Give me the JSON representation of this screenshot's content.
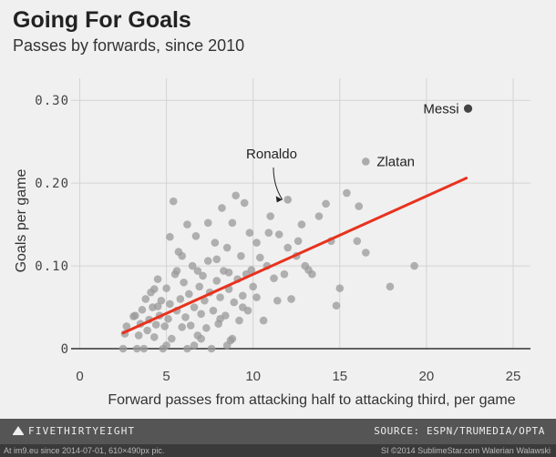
{
  "header": {
    "title": "Going For Goals",
    "subtitle": "Passes by forwards, since 2010"
  },
  "chart_data": {
    "type": "scatter",
    "title": "Going For Goals",
    "subtitle": "Passes by forwards, since 2010",
    "xlabel": "Forward passes from attacking half to attacking third, per game",
    "ylabel": "Goals per game",
    "xlim": [
      -0.5,
      26
    ],
    "ylim": [
      0,
      0.32
    ],
    "xticks": [
      0,
      5,
      10,
      15,
      20,
      25
    ],
    "xtick_labels": [
      "0",
      "5",
      "10",
      "15",
      "20",
      "25"
    ],
    "yticks": [
      0,
      0.1,
      0.2,
      0.3
    ],
    "ytick_labels": [
      "0",
      "0.10",
      "0.20",
      "0.30"
    ],
    "grid": true,
    "colors": {
      "points": "#9a9a9a",
      "highlight": "#444444",
      "trend": "#e8321e",
      "axis": "#333333",
      "grid": "#d4d4d4"
    },
    "trendline": {
      "x": [
        2.5,
        22.3
      ],
      "y": [
        0.019,
        0.206
      ]
    },
    "highlights": [
      {
        "name": "Messi",
        "x": 22.4,
        "y": 0.29
      },
      {
        "name": "Zlatan",
        "x": 16.5,
        "y": 0.226
      },
      {
        "name": "Ronaldo",
        "x": 12.0,
        "y": 0.18
      }
    ],
    "points": [
      [
        2.5,
        0.0
      ],
      [
        2.6,
        0.018
      ],
      [
        2.7,
        0.027
      ],
      [
        3.1,
        0.039
      ],
      [
        3.3,
        0.0
      ],
      [
        3.4,
        0.016
      ],
      [
        3.5,
        0.03
      ],
      [
        3.6,
        0.047
      ],
      [
        3.7,
        0.0
      ],
      [
        3.8,
        0.06
      ],
      [
        3.9,
        0.022
      ],
      [
        4.0,
        0.035
      ],
      [
        4.1,
        0.068
      ],
      [
        4.2,
        0.05
      ],
      [
        4.3,
        0.014
      ],
      [
        4.4,
        0.029
      ],
      [
        4.5,
        0.084
      ],
      [
        4.6,
        0.04
      ],
      [
        4.7,
        0.058
      ],
      [
        4.8,
        0.0
      ],
      [
        4.9,
        0.027
      ],
      [
        5.0,
        0.073
      ],
      [
        5.1,
        0.036
      ],
      [
        5.2,
        0.054
      ],
      [
        5.2,
        0.135
      ],
      [
        5.3,
        0.012
      ],
      [
        5.4,
        0.178
      ],
      [
        5.5,
        0.09
      ],
      [
        5.6,
        0.046
      ],
      [
        5.7,
        0.117
      ],
      [
        5.8,
        0.06
      ],
      [
        5.9,
        0.026
      ],
      [
        6.0,
        0.08
      ],
      [
        6.1,
        0.038
      ],
      [
        6.2,
        0.0
      ],
      [
        6.3,
        0.066
      ],
      [
        6.4,
        0.028
      ],
      [
        6.5,
        0.1
      ],
      [
        6.6,
        0.05
      ],
      [
        6.7,
        0.136
      ],
      [
        6.8,
        0.016
      ],
      [
        6.9,
        0.075
      ],
      [
        7.0,
        0.042
      ],
      [
        7.1,
        0.088
      ],
      [
        7.2,
        0.058
      ],
      [
        7.3,
        0.025
      ],
      [
        7.4,
        0.106
      ],
      [
        7.5,
        0.068
      ],
      [
        7.6,
        0.0
      ],
      [
        7.7,
        0.046
      ],
      [
        7.8,
        0.128
      ],
      [
        7.9,
        0.082
      ],
      [
        8.0,
        0.03
      ],
      [
        8.1,
        0.062
      ],
      [
        8.2,
        0.17
      ],
      [
        8.3,
        0.094
      ],
      [
        8.4,
        0.04
      ],
      [
        8.5,
        0.122
      ],
      [
        8.6,
        0.072
      ],
      [
        8.7,
        0.01
      ],
      [
        8.8,
        0.152
      ],
      [
        8.9,
        0.056
      ],
      [
        9.0,
        0.185
      ],
      [
        9.1,
        0.084
      ],
      [
        9.2,
        0.034
      ],
      [
        9.3,
        0.112
      ],
      [
        9.4,
        0.064
      ],
      [
        9.5,
        0.176
      ],
      [
        9.6,
        0.09
      ],
      [
        9.7,
        0.046
      ],
      [
        9.8,
        0.14
      ],
      [
        10.0,
        0.075
      ],
      [
        10.2,
        0.128
      ],
      [
        10.4,
        0.11
      ],
      [
        10.6,
        0.034
      ],
      [
        10.8,
        0.1
      ],
      [
        11.0,
        0.16
      ],
      [
        11.2,
        0.085
      ],
      [
        11.5,
        0.138
      ],
      [
        11.8,
        0.09
      ],
      [
        12.0,
        0.122
      ],
      [
        12.2,
        0.06
      ],
      [
        12.5,
        0.112
      ],
      [
        12.8,
        0.15
      ],
      [
        13.0,
        0.1
      ],
      [
        13.4,
        0.09
      ],
      [
        13.8,
        0.16
      ],
      [
        14.2,
        0.175
      ],
      [
        14.5,
        0.13
      ],
      [
        14.8,
        0.052
      ],
      [
        15.0,
        0.073
      ],
      [
        15.4,
        0.188
      ],
      [
        16.0,
        0.13
      ],
      [
        16.1,
        0.172
      ],
      [
        16.5,
        0.116
      ],
      [
        17.9,
        0.075
      ],
      [
        19.3,
        0.1
      ],
      [
        5.0,
        0.004
      ],
      [
        6.6,
        0.004
      ],
      [
        8.5,
        0.004
      ],
      [
        3.2,
        0.04
      ],
      [
        4.3,
        0.072
      ],
      [
        5.6,
        0.094
      ],
      [
        7.0,
        0.012
      ],
      [
        7.4,
        0.152
      ],
      [
        8.1,
        0.036
      ],
      [
        8.8,
        0.012
      ],
      [
        9.4,
        0.05
      ],
      [
        10.2,
        0.062
      ],
      [
        10.9,
        0.14
      ],
      [
        6.2,
        0.15
      ],
      [
        7.9,
        0.108
      ],
      [
        5.9,
        0.112
      ],
      [
        6.8,
        0.094
      ],
      [
        9.9,
        0.095
      ],
      [
        11.4,
        0.058
      ],
      [
        12.6,
        0.13
      ],
      [
        13.2,
        0.095
      ],
      [
        8.6,
        0.092
      ],
      [
        4.5,
        0.051
      ]
    ]
  },
  "footer": {
    "brand": "FIVETHIRTYEIGHT",
    "source": "SOURCE: ESPN/TRUMEDIA/OPTA"
  },
  "watermark": {
    "left": "At im9.eu since 2014-07-01, 610×490px pic.",
    "right": "SI ©2014 SublimeStar.com Walerian Walawski"
  }
}
